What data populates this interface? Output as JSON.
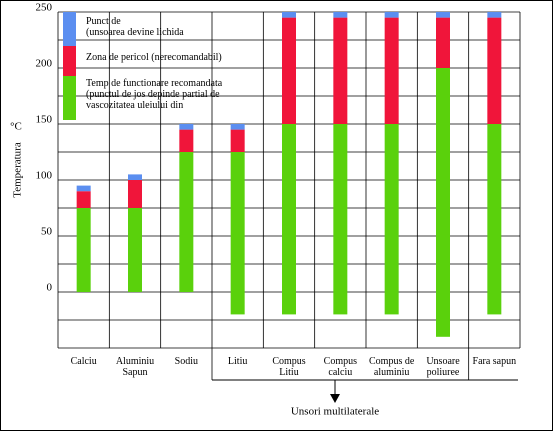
{
  "chart_data": {
    "type": "range-stack",
    "y_label": "Temperatura",
    "y_unit": "°C",
    "categories": [
      "Calciu",
      "Aluminiu\nSapun",
      "Sodiu",
      "Litiu",
      "Compus\nLitiu",
      "Compus\ncalciu",
      "Compus de\naluminiu",
      "Unsoare\npoliuree",
      "Fara sapun"
    ],
    "group_label": "Unsori multilaterale",
    "series": [
      {
        "name": "Temp de functionare recomandata\n(punctul de jos depinde partial de\nvascozitatea uleiului din",
        "color": "#5ad10c",
        "low": [
          0,
          0,
          0,
          -20,
          -20,
          -20,
          -20,
          -40,
          -20
        ],
        "high": [
          75,
          75,
          125,
          125,
          150,
          150,
          150,
          200,
          150
        ]
      },
      {
        "name": "Zona de pericol (nerecomandabil)",
        "color": "#f0153a",
        "values": [
          15,
          25,
          20,
          20,
          95,
          95,
          95,
          45,
          95
        ]
      },
      {
        "name": "Punct de\n(unsoarea devine lichida",
        "color": "#5b8ef0",
        "values": [
          5,
          5,
          5,
          5,
          5,
          5,
          5,
          5,
          5
        ]
      }
    ],
    "ylim": [
      -50,
      250
    ],
    "yticks": [
      0,
      50,
      100,
      150,
      200,
      250
    ],
    "grid_lines": [
      -50,
      -25,
      0,
      25,
      50,
      75,
      100,
      125,
      150,
      175,
      200,
      225,
      250
    ]
  }
}
